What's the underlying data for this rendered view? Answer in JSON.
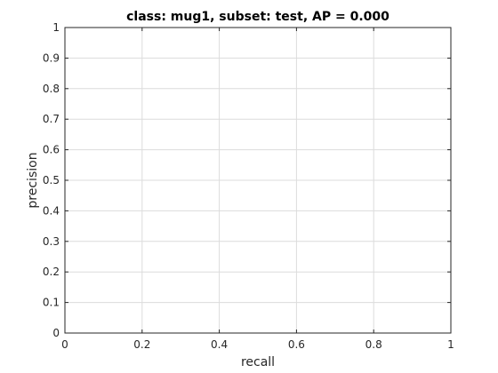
{
  "chart_data": {
    "type": "line",
    "title": "class: mug1, subset: test, AP = 0.000",
    "xlabel": "recall",
    "ylabel": "precision",
    "xlim": [
      0,
      1
    ],
    "ylim": [
      0,
      1
    ],
    "xticks": [
      "0",
      "0.2",
      "0.4",
      "0.6",
      "0.8",
      "1"
    ],
    "yticks": [
      "0",
      "0.1",
      "0.2",
      "0.3",
      "0.4",
      "0.5",
      "0.6",
      "0.7",
      "0.8",
      "0.9",
      "1"
    ],
    "grid": true,
    "series": [
      {
        "x": [],
        "y": []
      }
    ]
  }
}
